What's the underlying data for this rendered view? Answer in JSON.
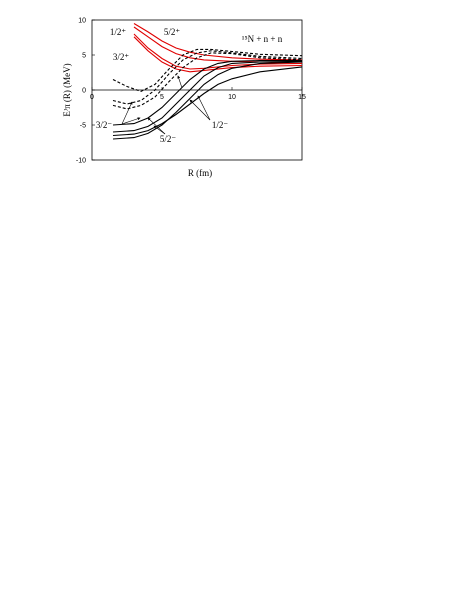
{
  "chart_data": {
    "type": "line",
    "xlabel": "R (fm)",
    "ylabel": "Eᴶπ (R) (MeV)",
    "xlim": [
      0,
      15
    ],
    "xticks": [
      0,
      5,
      10,
      15
    ],
    "ylim": [
      -10,
      10
    ],
    "yticks": [
      -10,
      -5,
      0,
      5,
      10
    ],
    "annotations": [
      "1/2⁺",
      "5/2⁺",
      "3/2⁺",
      "¹⁵N + n + n",
      "3/2⁻",
      "5/2⁻",
      "1/2⁻"
    ],
    "series": [
      {
        "color": "#e00000",
        "dashed": false,
        "x": [
          3,
          4,
          5,
          6,
          7,
          8,
          10,
          12,
          15
        ],
        "values": [
          9.5,
          8.3,
          7,
          6,
          5.4,
          5,
          4.6,
          4.4,
          4.3
        ]
      },
      {
        "color": "#e00000",
        "dashed": false,
        "x": [
          3,
          4,
          5,
          6,
          7,
          8,
          10,
          12,
          15
        ],
        "values": [
          9,
          7.6,
          6.2,
          5.2,
          4.6,
          4.3,
          4.1,
          4,
          4
        ]
      },
      {
        "color": "#e00000",
        "dashed": false,
        "x": [
          3,
          4,
          5,
          6,
          7,
          8,
          10,
          12,
          15
        ],
        "values": [
          8,
          6,
          4.5,
          3.4,
          3,
          3.1,
          3.5,
          3.7,
          3.8
        ]
      },
      {
        "color": "#e00000",
        "dashed": false,
        "x": [
          3,
          4,
          5,
          6,
          7,
          8,
          10,
          12,
          15
        ],
        "values": [
          7.6,
          5.6,
          4,
          3,
          2.6,
          2.8,
          3.2,
          3.4,
          3.5
        ]
      },
      {
        "color": "#000000",
        "dashed": true,
        "x": [
          1.5,
          2.5,
          3.5,
          4.5,
          5.5,
          6.5,
          7.5,
          8.5,
          10,
          12,
          15
        ],
        "values": [
          1.5,
          0.5,
          -0.2,
          0.8,
          3,
          5,
          5.8,
          5.8,
          5.5,
          5.1,
          4.9
        ]
      },
      {
        "color": "#000000",
        "dashed": true,
        "x": [
          1.5,
          2.5,
          3.5,
          4.5,
          5.5,
          6.5,
          7.5,
          8.5,
          10,
          12,
          15
        ],
        "values": [
          -1.5,
          -2,
          -1.5,
          0,
          2.3,
          4.3,
          5.3,
          5.6,
          5.3,
          4.8,
          4.5
        ]
      },
      {
        "color": "#000000",
        "dashed": true,
        "x": [
          1.5,
          2.5,
          3.5,
          4.5,
          5.5,
          6.5,
          7.5,
          8.5,
          10,
          12,
          15
        ],
        "values": [
          -2.2,
          -2.7,
          -2.2,
          -1,
          1.2,
          3.2,
          4.6,
          5.3,
          5.2,
          4.6,
          4.3
        ]
      },
      {
        "color": "#000000",
        "dashed": false,
        "x": [
          1.5,
          3,
          4,
          5,
          6,
          7,
          8,
          9,
          10,
          12,
          15
        ],
        "values": [
          -5,
          -4.8,
          -4,
          -2.5,
          -0.5,
          1.5,
          3,
          3.8,
          4.1,
          4.2,
          4.2
        ]
      },
      {
        "color": "#000000",
        "dashed": false,
        "x": [
          1.5,
          3,
          4,
          5,
          6,
          7,
          8,
          9,
          10,
          12,
          15
        ],
        "values": [
          -6,
          -5.8,
          -5.2,
          -4,
          -2,
          0,
          2,
          3.2,
          3.8,
          4,
          4.1
        ]
      },
      {
        "color": "#000000",
        "dashed": false,
        "x": [
          1.5,
          3,
          4,
          5,
          6,
          7,
          8,
          9,
          10,
          12,
          15
        ],
        "values": [
          -7,
          -6.8,
          -6.2,
          -5,
          -3.2,
          -1.2,
          0.8,
          2.2,
          3.1,
          3.8,
          4
        ]
      },
      {
        "color": "#000000",
        "dashed": false,
        "x": [
          1.5,
          3,
          4,
          5,
          6,
          7,
          8,
          9,
          10,
          12,
          15
        ],
        "values": [
          -6.5,
          -6.3,
          -5.8,
          -4.8,
          -3.5,
          -2,
          -0.5,
          0.8,
          1.6,
          2.6,
          3.3
        ]
      }
    ]
  }
}
